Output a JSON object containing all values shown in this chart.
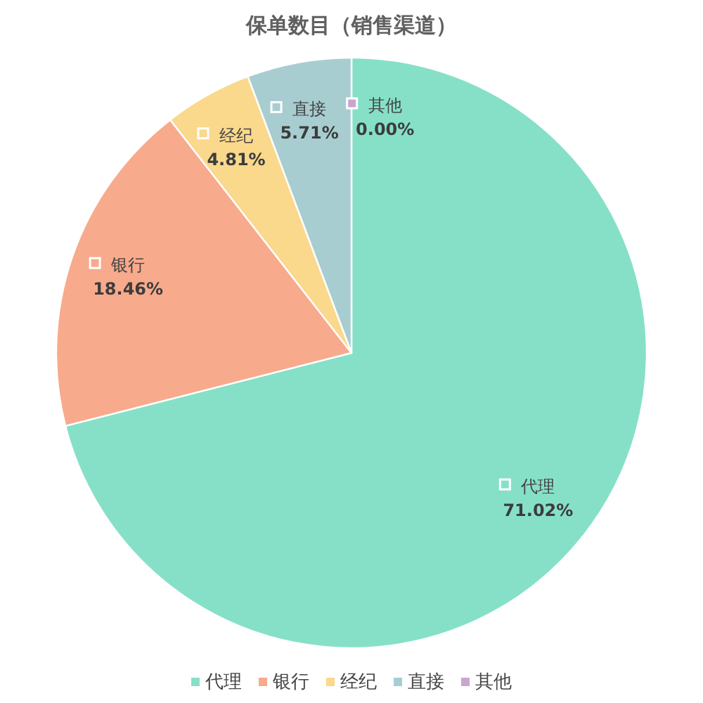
{
  "chart_data": {
    "type": "pie",
    "title": "保单数目（销售渠道）",
    "categories": [
      "代理",
      "银行",
      "经纪",
      "直接",
      "其他"
    ],
    "values": [
      71.02,
      18.46,
      4.81,
      5.71,
      0.0
    ],
    "colors": [
      "#86e0c8",
      "#f8aa8c",
      "#fad88c",
      "#a8cdd0",
      "#c8a6cf"
    ],
    "value_labels": [
      "71.02%",
      "18.46%",
      "4.81%",
      "5.71%",
      "0.00%"
    ],
    "legend": "bottom"
  }
}
